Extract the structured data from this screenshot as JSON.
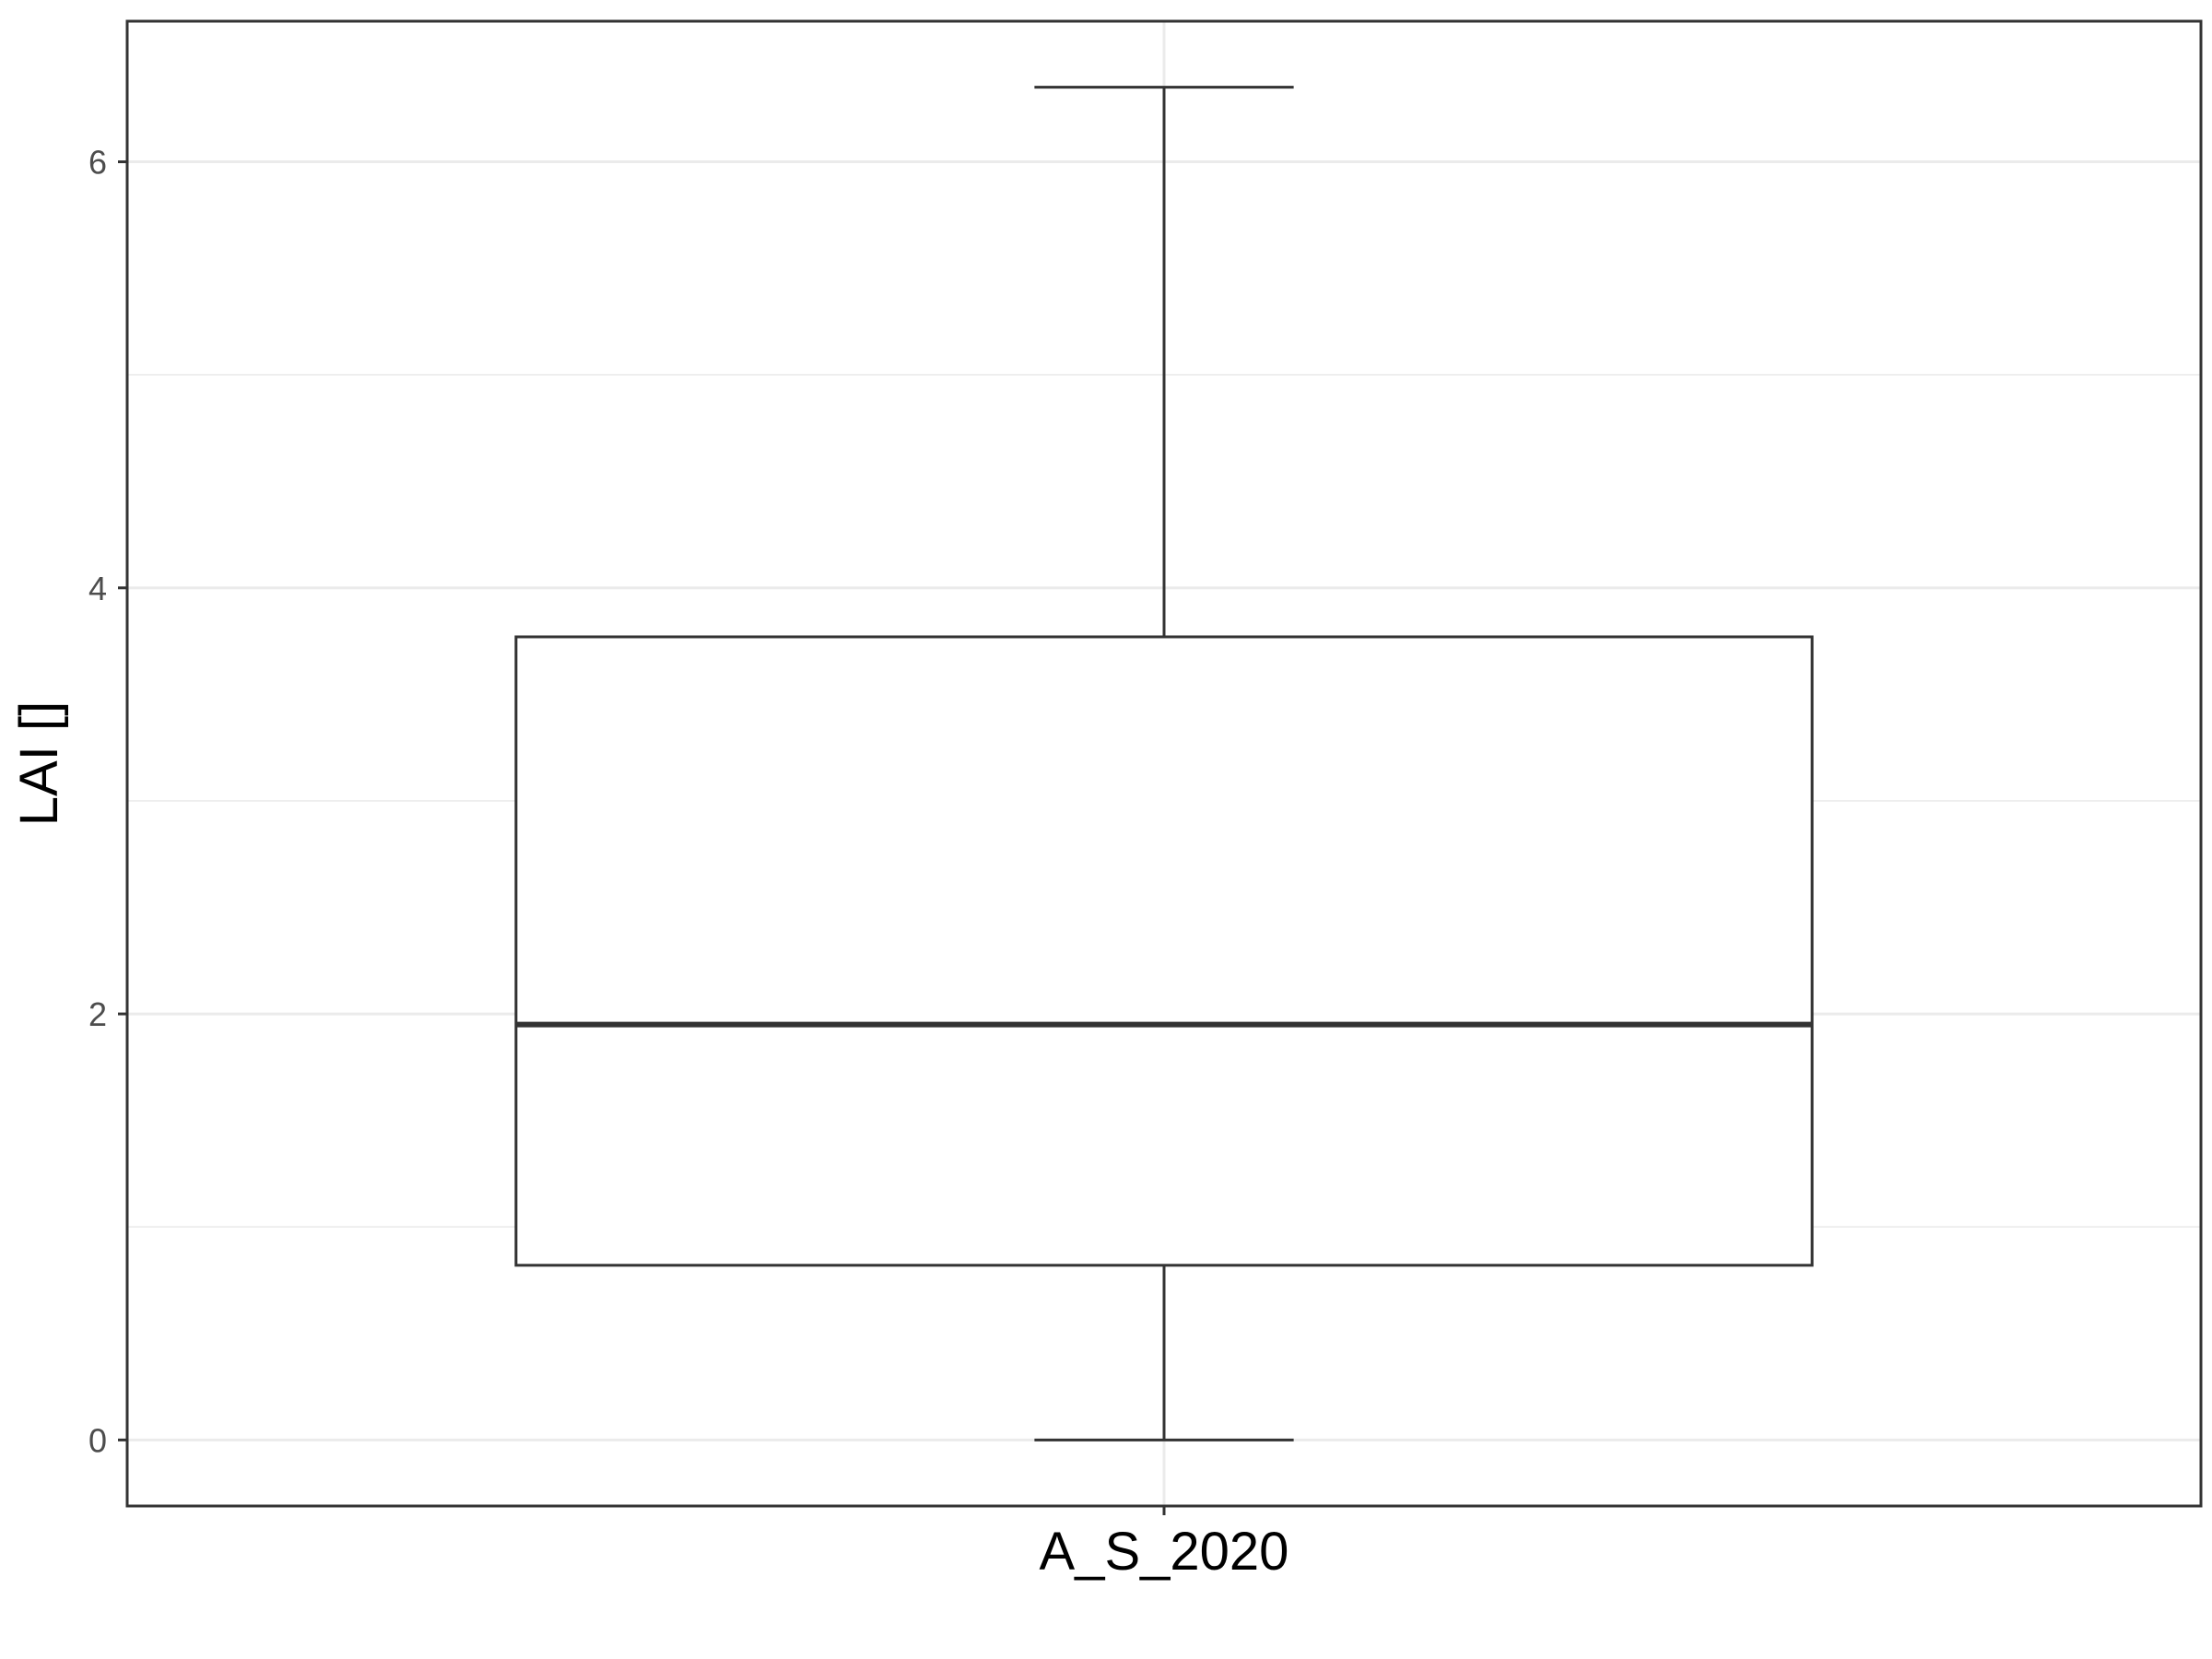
{
  "chart_data": {
    "type": "boxplot",
    "title": "",
    "xlabel": "",
    "ylabel": "LAI []",
    "categories": [
      "A_S_2020"
    ],
    "boxes": [
      {
        "category": "A_S_2020",
        "whisker_low": 0.0,
        "q1": 0.82,
        "median": 1.95,
        "q3": 3.77,
        "whisker_high": 6.35
      }
    ],
    "y_ticks": [
      0,
      2,
      4,
      6
    ],
    "y_minor_ticks": [
      1,
      3,
      5
    ],
    "ylim": [
      -0.31,
      6.66
    ],
    "grid": true,
    "legend": "none",
    "colors": {
      "box_line": "#333333",
      "box_fill": "#ffffff",
      "grid": "#ebebeb",
      "panel_border": "#333333",
      "tick_label": "#4d4d4d",
      "axis_title": "#000000"
    }
  }
}
